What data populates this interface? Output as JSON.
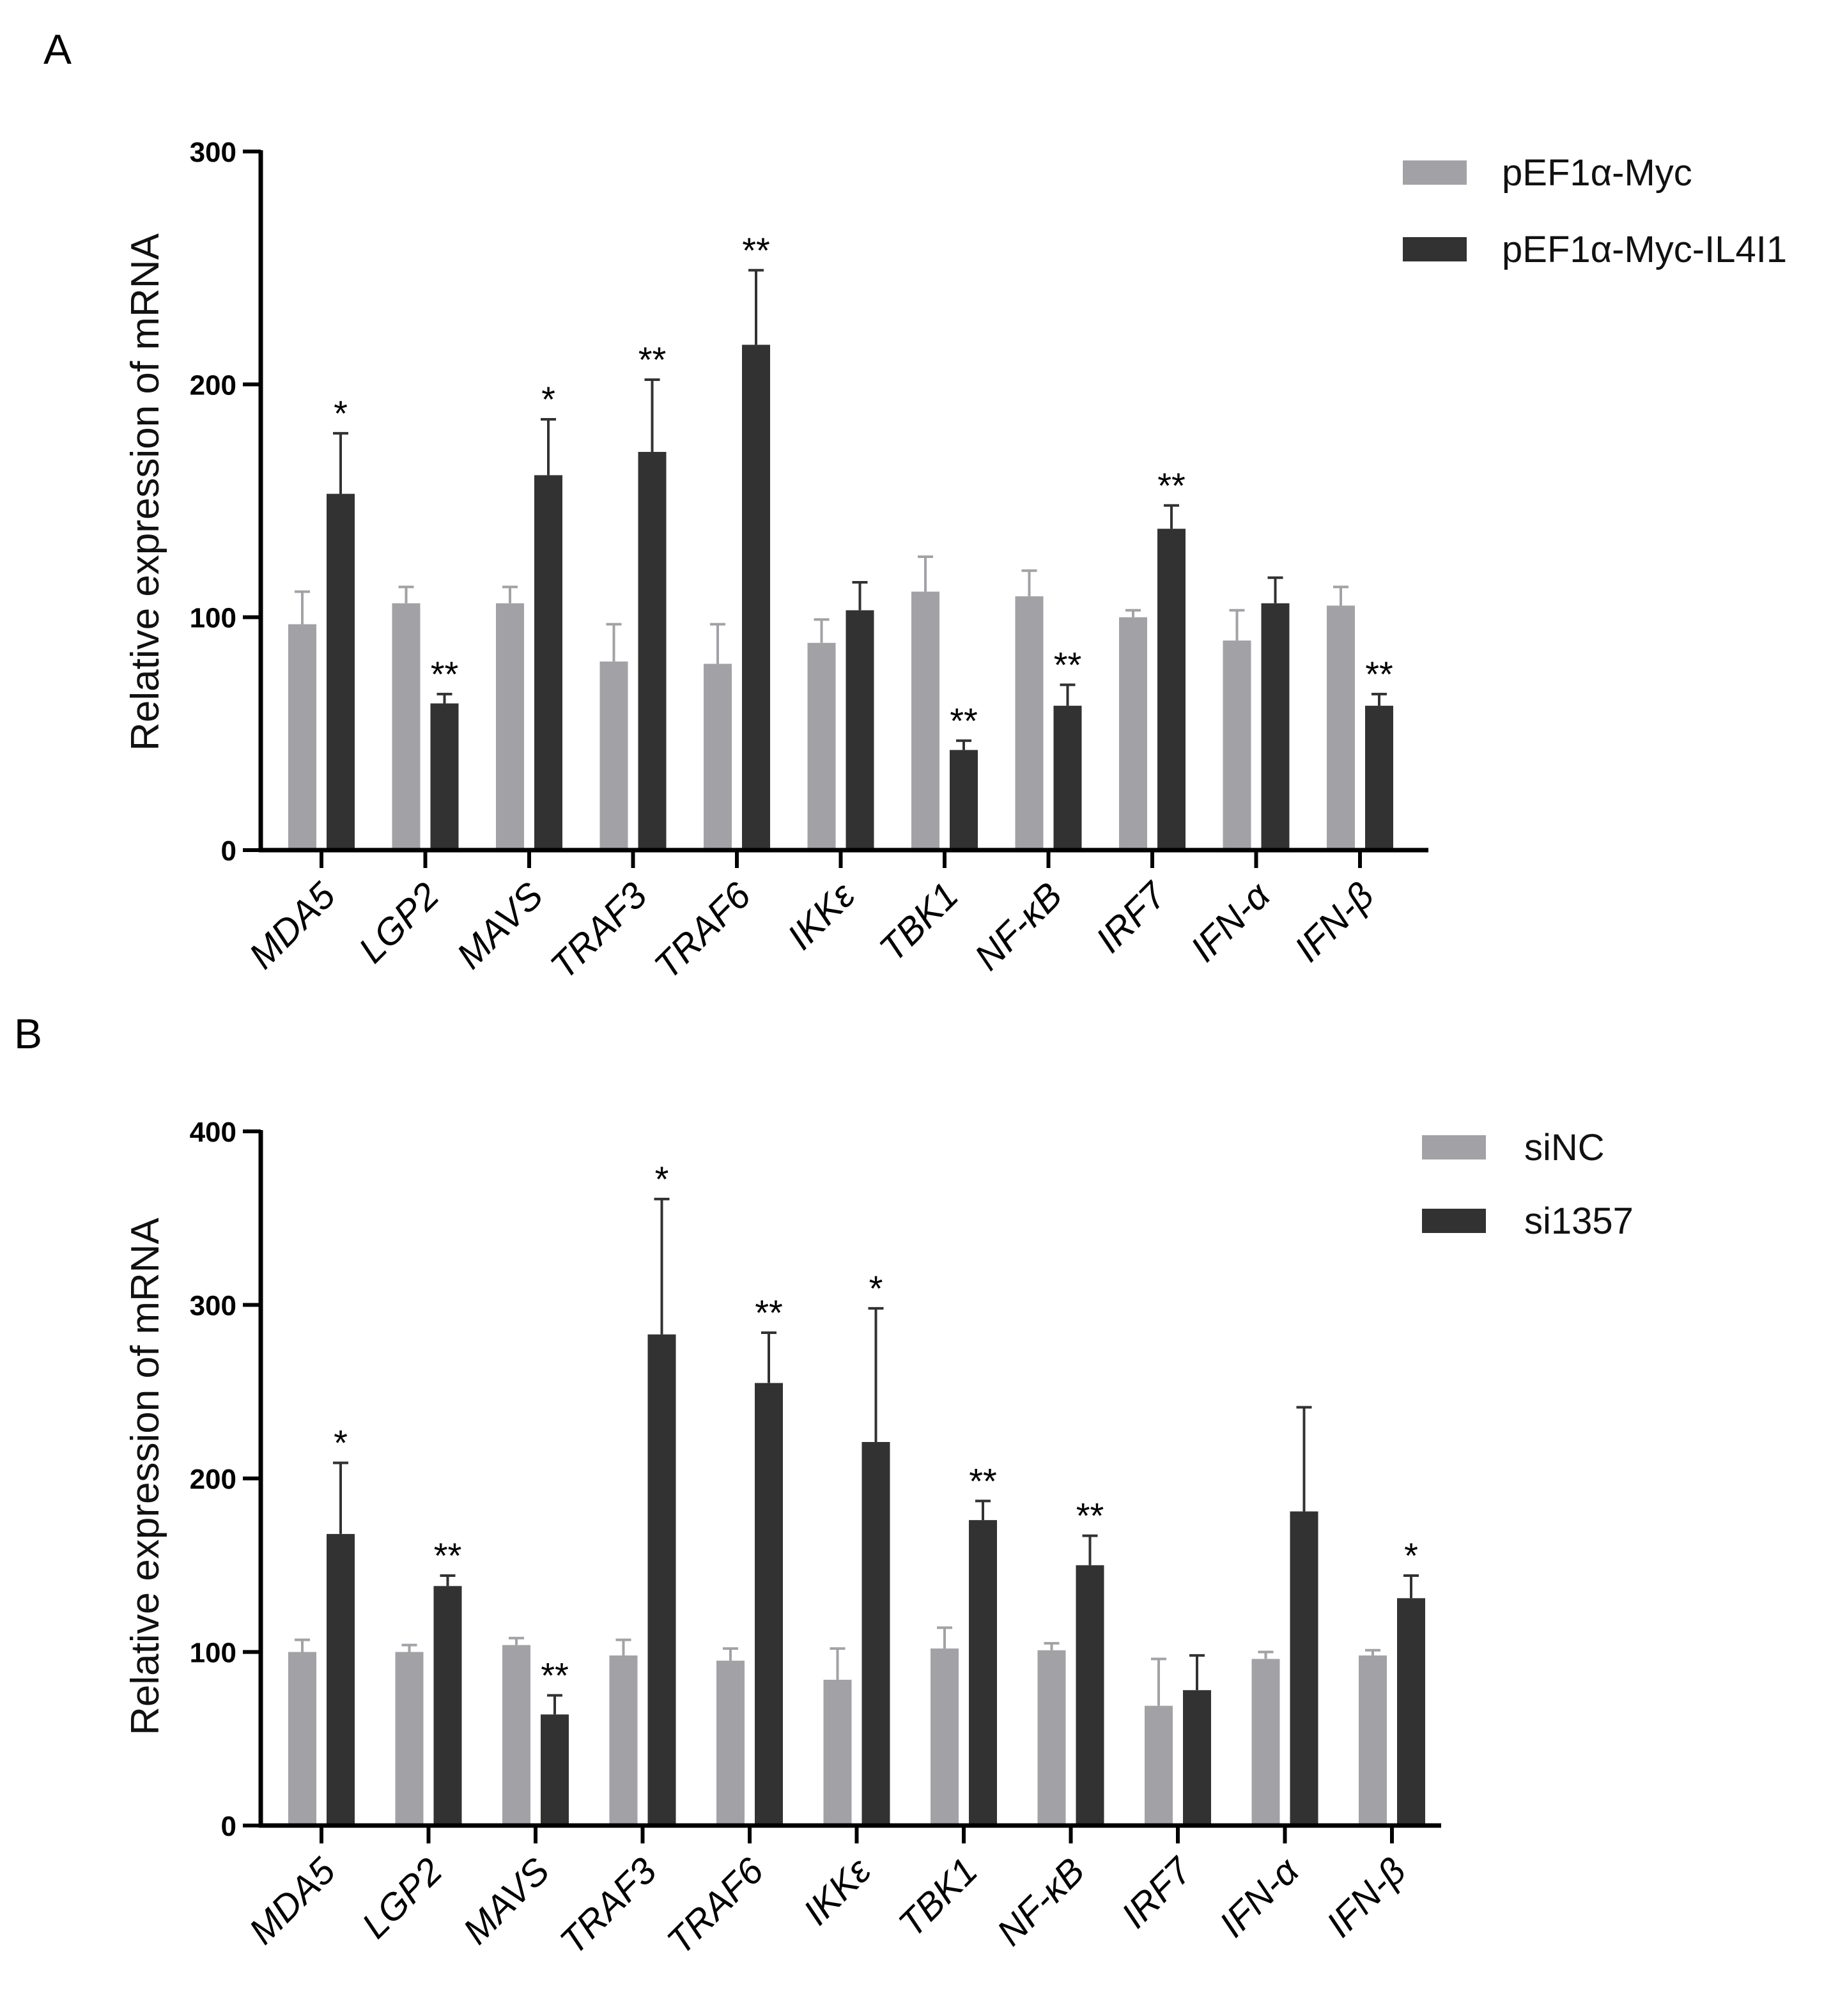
{
  "colors": {
    "control": "#a2a2a6",
    "treatment": "#323232",
    "axis": "#000000"
  },
  "chart_data": [
    {
      "type": "bar",
      "panel": "A",
      "ylabel": "Relative expression of mRNA",
      "ylim": [
        0,
        300
      ],
      "yticks": [
        0,
        100,
        200,
        300
      ],
      "categories": [
        "MDA5",
        "LGP2",
        "MAVS",
        "TRAF3",
        "TRAF6",
        "IKKε",
        "TBK1",
        "NF-κB",
        "IRF7",
        "IFN-α",
        "IFN-β"
      ],
      "legend_position": "top-right",
      "series": [
        {
          "name": "pEF1α-Myc",
          "values": [
            97,
            106,
            106,
            81,
            80,
            89,
            111,
            109,
            100,
            90,
            105
          ],
          "errors": [
            14,
            7,
            7,
            16,
            17,
            10,
            15,
            11,
            3,
            13,
            8
          ],
          "sig": [
            "",
            "",
            "",
            "",
            "",
            "",
            "",
            "",
            "",
            "",
            ""
          ]
        },
        {
          "name": "pEF1α-Myc-IL4I1",
          "values": [
            153,
            63,
            161,
            171,
            217,
            103,
            43,
            62,
            138,
            106,
            62
          ],
          "errors": [
            26,
            4,
            24,
            31,
            32,
            12,
            4,
            9,
            10,
            11,
            5
          ],
          "sig": [
            "*",
            "**",
            "*",
            "**",
            "**",
            "",
            "**",
            "**",
            "**",
            "",
            "**"
          ]
        }
      ]
    },
    {
      "type": "bar",
      "panel": "B",
      "ylabel": "Relative expression of mRNA",
      "ylim": [
        0,
        400
      ],
      "yticks": [
        0,
        100,
        200,
        300,
        400
      ],
      "categories": [
        "MDA5",
        "LGP2",
        "MAVS",
        "TRAF3",
        "TRAF6",
        "IKKε",
        "TBK1",
        "NF-κB",
        "IRF7",
        "IFN-α",
        "IFN-β"
      ],
      "legend_position": "top-right",
      "series": [
        {
          "name": "siNC",
          "values": [
            100,
            100,
            104,
            98,
            95,
            84,
            102,
            101,
            69,
            96,
            98
          ],
          "errors": [
            7,
            4,
            4,
            9,
            7,
            18,
            12,
            4,
            27,
            4,
            3
          ],
          "sig": [
            "",
            "",
            "",
            "",
            "",
            "",
            "",
            "",
            "",
            "",
            ""
          ]
        },
        {
          "name": "si1357",
          "values": [
            168,
            138,
            64,
            283,
            255,
            221,
            176,
            150,
            78,
            181,
            131
          ],
          "errors": [
            41,
            6,
            11,
            78,
            29,
            77,
            11,
            17,
            20,
            60,
            13
          ],
          "sig": [
            "*",
            "**",
            "**",
            "*",
            "**",
            "*",
            "**",
            "**",
            "",
            "",
            "*"
          ]
        }
      ]
    }
  ]
}
